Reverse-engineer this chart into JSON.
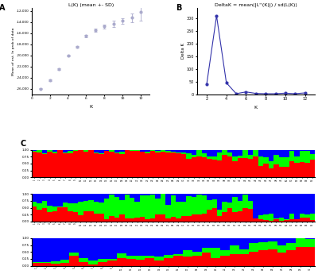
{
  "panel_A": {
    "title": "L(K) (mean +- SD)",
    "xlabel": "K",
    "ylabel": "Mean of est. ln prob of data",
    "x": [
      1,
      2,
      3,
      4,
      5,
      6,
      7,
      8,
      9,
      10,
      11,
      12
    ],
    "y": [
      -26000,
      -24500,
      -22500,
      -20000,
      -18500,
      -16500,
      -15500,
      -14800,
      -14300,
      -13800,
      -13200,
      -12200
    ],
    "yerr": [
      100,
      100,
      100,
      150,
      150,
      200,
      300,
      400,
      600,
      500,
      800,
      1600
    ],
    "color": "#aaaacc",
    "ylim": [
      -27000,
      -11500
    ],
    "xlim": [
      0,
      13
    ],
    "yticks": [
      -26000,
      -24000,
      -22000,
      -20000,
      -18000,
      -16000,
      -14000,
      -12000
    ]
  },
  "panel_B": {
    "title": "DeltaK = mean(|L''(K)|) / sd(L(K))",
    "xlabel": "K",
    "ylabel": "Delta K",
    "x": [
      2,
      3,
      4,
      5,
      6,
      7,
      8,
      9,
      10,
      11,
      12
    ],
    "y": [
      40,
      310,
      45,
      2,
      9,
      3,
      2,
      2,
      4,
      2,
      5
    ],
    "color": "#3333aa",
    "ylim": [
      0,
      340
    ],
    "xlim": [
      1,
      13
    ],
    "yticks": [
      0,
      50,
      100,
      150,
      200,
      250,
      300
    ]
  },
  "background_color": "#ffffff",
  "fig_facecolor": "#ffffff",
  "bar_colors": [
    "red",
    "lime",
    "blue"
  ],
  "bar_row1_n": 55,
  "bar_row2_n": 55,
  "bar_row3_n": 30
}
